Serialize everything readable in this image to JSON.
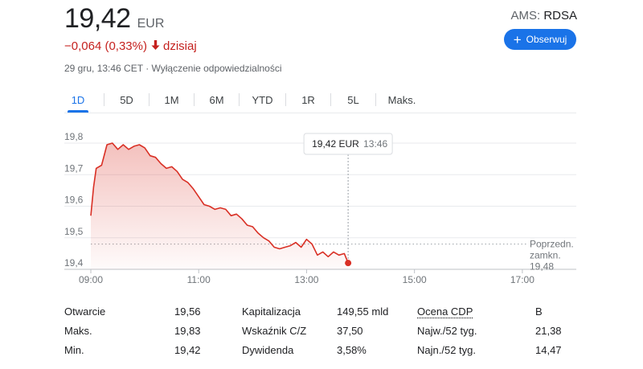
{
  "header": {
    "price": "19,42",
    "currency": "EUR",
    "change": "−0,064 (0,33%)",
    "change_suffix": "dzisiaj",
    "timestamp": "29 gru, 13:46 CET",
    "disclaimer": "Wyłączenie odpowiedzialności",
    "exchange": "AMS:",
    "symbol": "RDSA",
    "follow_label": "Obserwuj",
    "colors": {
      "negative": "#c5221f",
      "accent": "#1a73e8"
    }
  },
  "tabs": [
    {
      "label": "1D",
      "selected": true
    },
    {
      "label": "5D"
    },
    {
      "label": "1M"
    },
    {
      "label": "6M"
    },
    {
      "label": "YTD"
    },
    {
      "label": "1R"
    },
    {
      "label": "5L"
    },
    {
      "label": "Maks."
    }
  ],
  "chart_data": {
    "type": "area",
    "x_ticks": [
      "09:00",
      "11:00",
      "13:00",
      "15:00",
      "17:00"
    ],
    "y_ticks": [
      "19,8",
      "19,7",
      "19,6",
      "19,5",
      "19,4"
    ],
    "ylim": [
      19.4,
      19.8
    ],
    "xlim_hours": [
      9,
      18
    ],
    "grid": true,
    "line_color": "#d93025",
    "series": [
      {
        "x": [
          9.0,
          9.05,
          9.1,
          9.2,
          9.3,
          9.4,
          9.5,
          9.6,
          9.7,
          9.8,
          9.9,
          10.0,
          10.1,
          10.2,
          10.3,
          10.4,
          10.5,
          10.6,
          10.7,
          10.8,
          10.9,
          11.0,
          11.1,
          11.2,
          11.3,
          11.4,
          11.5,
          11.6,
          11.7,
          11.8,
          11.9,
          12.0,
          12.1,
          12.2,
          12.3,
          12.4,
          12.5,
          12.6,
          12.7,
          12.8,
          12.9,
          13.0,
          13.1,
          13.2,
          13.3,
          13.4,
          13.5,
          13.6,
          13.7,
          13.77
        ],
        "y": [
          19.57,
          19.66,
          19.72,
          19.73,
          19.795,
          19.8,
          19.78,
          19.795,
          19.78,
          19.79,
          19.795,
          19.785,
          19.76,
          19.755,
          19.735,
          19.72,
          19.725,
          19.71,
          19.685,
          19.675,
          19.655,
          19.63,
          19.605,
          19.6,
          19.59,
          19.595,
          19.59,
          19.57,
          19.575,
          19.56,
          19.54,
          19.535,
          19.515,
          19.5,
          19.49,
          19.47,
          19.465,
          19.47,
          19.475,
          19.485,
          19.47,
          19.495,
          19.48,
          19.445,
          19.455,
          19.44,
          19.455,
          19.445,
          19.45,
          19.42
        ]
      }
    ],
    "previous_close": 19.48,
    "previous_close_label": [
      "Poprzedn.",
      "zamkn.",
      "19,48"
    ],
    "tooltip": {
      "price": "19,42 EUR",
      "time": "13:46",
      "x": 13.77
    }
  },
  "stats": [
    [
      {
        "label": "Otwarcie",
        "value": "19,56"
      },
      {
        "label": "Kapitalizacja",
        "value": "149,55 mld"
      },
      {
        "label": "Ocena CDP",
        "value": "B"
      }
    ],
    [
      {
        "label": "Maks.",
        "value": "19,83"
      },
      {
        "label": "Wskaźnik C/Z",
        "value": "37,50"
      },
      {
        "label": "Najw./52 tyg.",
        "value": "21,38"
      }
    ],
    [
      {
        "label": "Min.",
        "value": "19,42"
      },
      {
        "label": "Dywidenda",
        "value": "3,58%"
      },
      {
        "label": "Najn./52 tyg.",
        "value": "14,47"
      }
    ]
  ]
}
